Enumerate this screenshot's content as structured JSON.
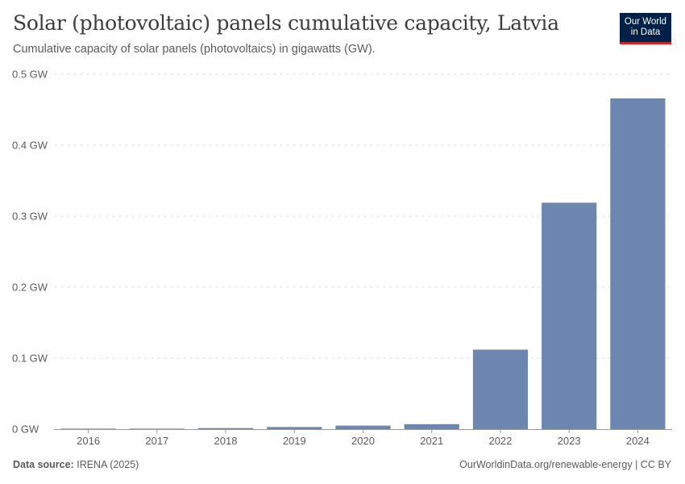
{
  "header": {
    "title": "Solar (photovoltaic) panels cumulative capacity, Latvia",
    "subtitle": "Cumulative capacity of solar panels (photovoltaics) in gigawatts (GW)."
  },
  "logo": {
    "line1": "Our World",
    "line2": "in Data"
  },
  "footer": {
    "source_label": "Data source:",
    "source": "IRENA (2025)",
    "url": "OurWorldinData.org/renewable-energy | CC BY"
  },
  "colors": {
    "bar": "#6d86b0",
    "grid": "#dddddd",
    "axis": "#999999",
    "text": "#5b5b5b"
  },
  "chart_data": {
    "type": "bar",
    "categories": [
      "2016",
      "2017",
      "2018",
      "2019",
      "2020",
      "2021",
      "2022",
      "2023",
      "2024"
    ],
    "values": [
      0.0007,
      0.0007,
      0.0015,
      0.003,
      0.005,
      0.007,
      0.112,
      0.319,
      0.466
    ],
    "unit": "GW",
    "ylim": [
      0,
      0.5
    ],
    "yticks": [
      0,
      0.1,
      0.2,
      0.3,
      0.4,
      0.5
    ],
    "ytick_labels": [
      "0 GW",
      "0.1 GW",
      "0.2 GW",
      "0.3 GW",
      "0.4 GW",
      "0.5 GW"
    ],
    "grid": true,
    "legend": "none"
  }
}
